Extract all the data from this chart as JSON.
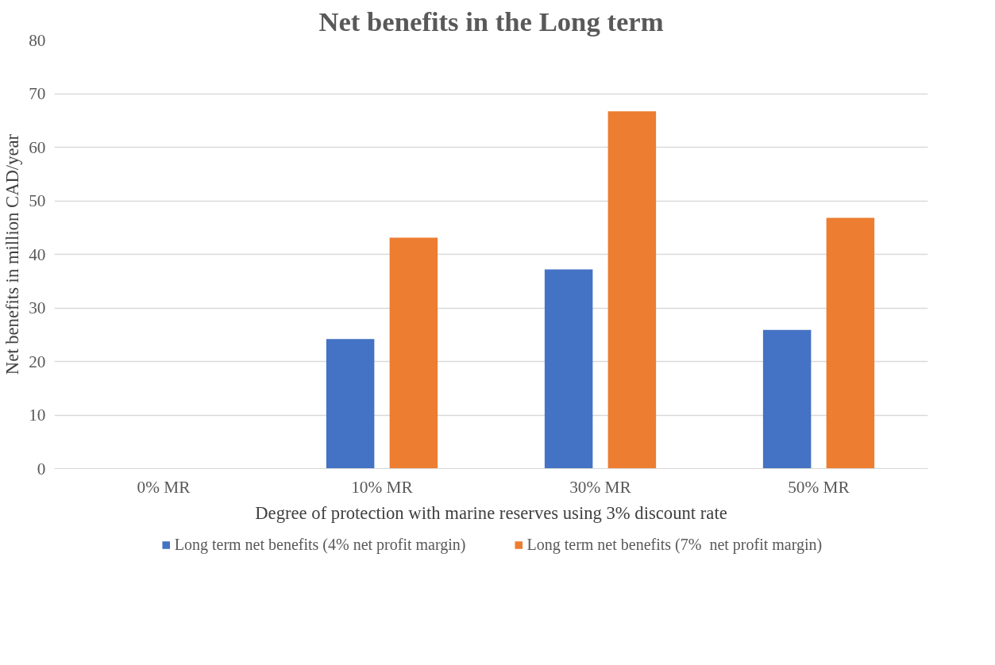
{
  "chart_data": {
    "type": "bar",
    "title": "Net benefits in the Long term",
    "xlabel": "Degree of protection with marine reserves using 3% discount rate",
    "ylabel": "Net benefits in million CAD/year",
    "categories": [
      "0% MR",
      "10% MR",
      "30% MR",
      "50% MR"
    ],
    "series": [
      {
        "name": "Long term net benefits (4% net profit margin)",
        "color": "#4472c4",
        "values": [
          0,
          24.2,
          37.2,
          25.9
        ]
      },
      {
        "name": "Long term net benefits (7%  net profit margin)",
        "color": "#ed7d31",
        "values": [
          0,
          43.1,
          66.7,
          46.8
        ]
      }
    ],
    "ylim": [
      0,
      80
    ],
    "yticks": [
      0,
      10,
      20,
      30,
      40,
      50,
      60,
      70,
      80
    ],
    "grid": "y",
    "legend": "bottom"
  }
}
